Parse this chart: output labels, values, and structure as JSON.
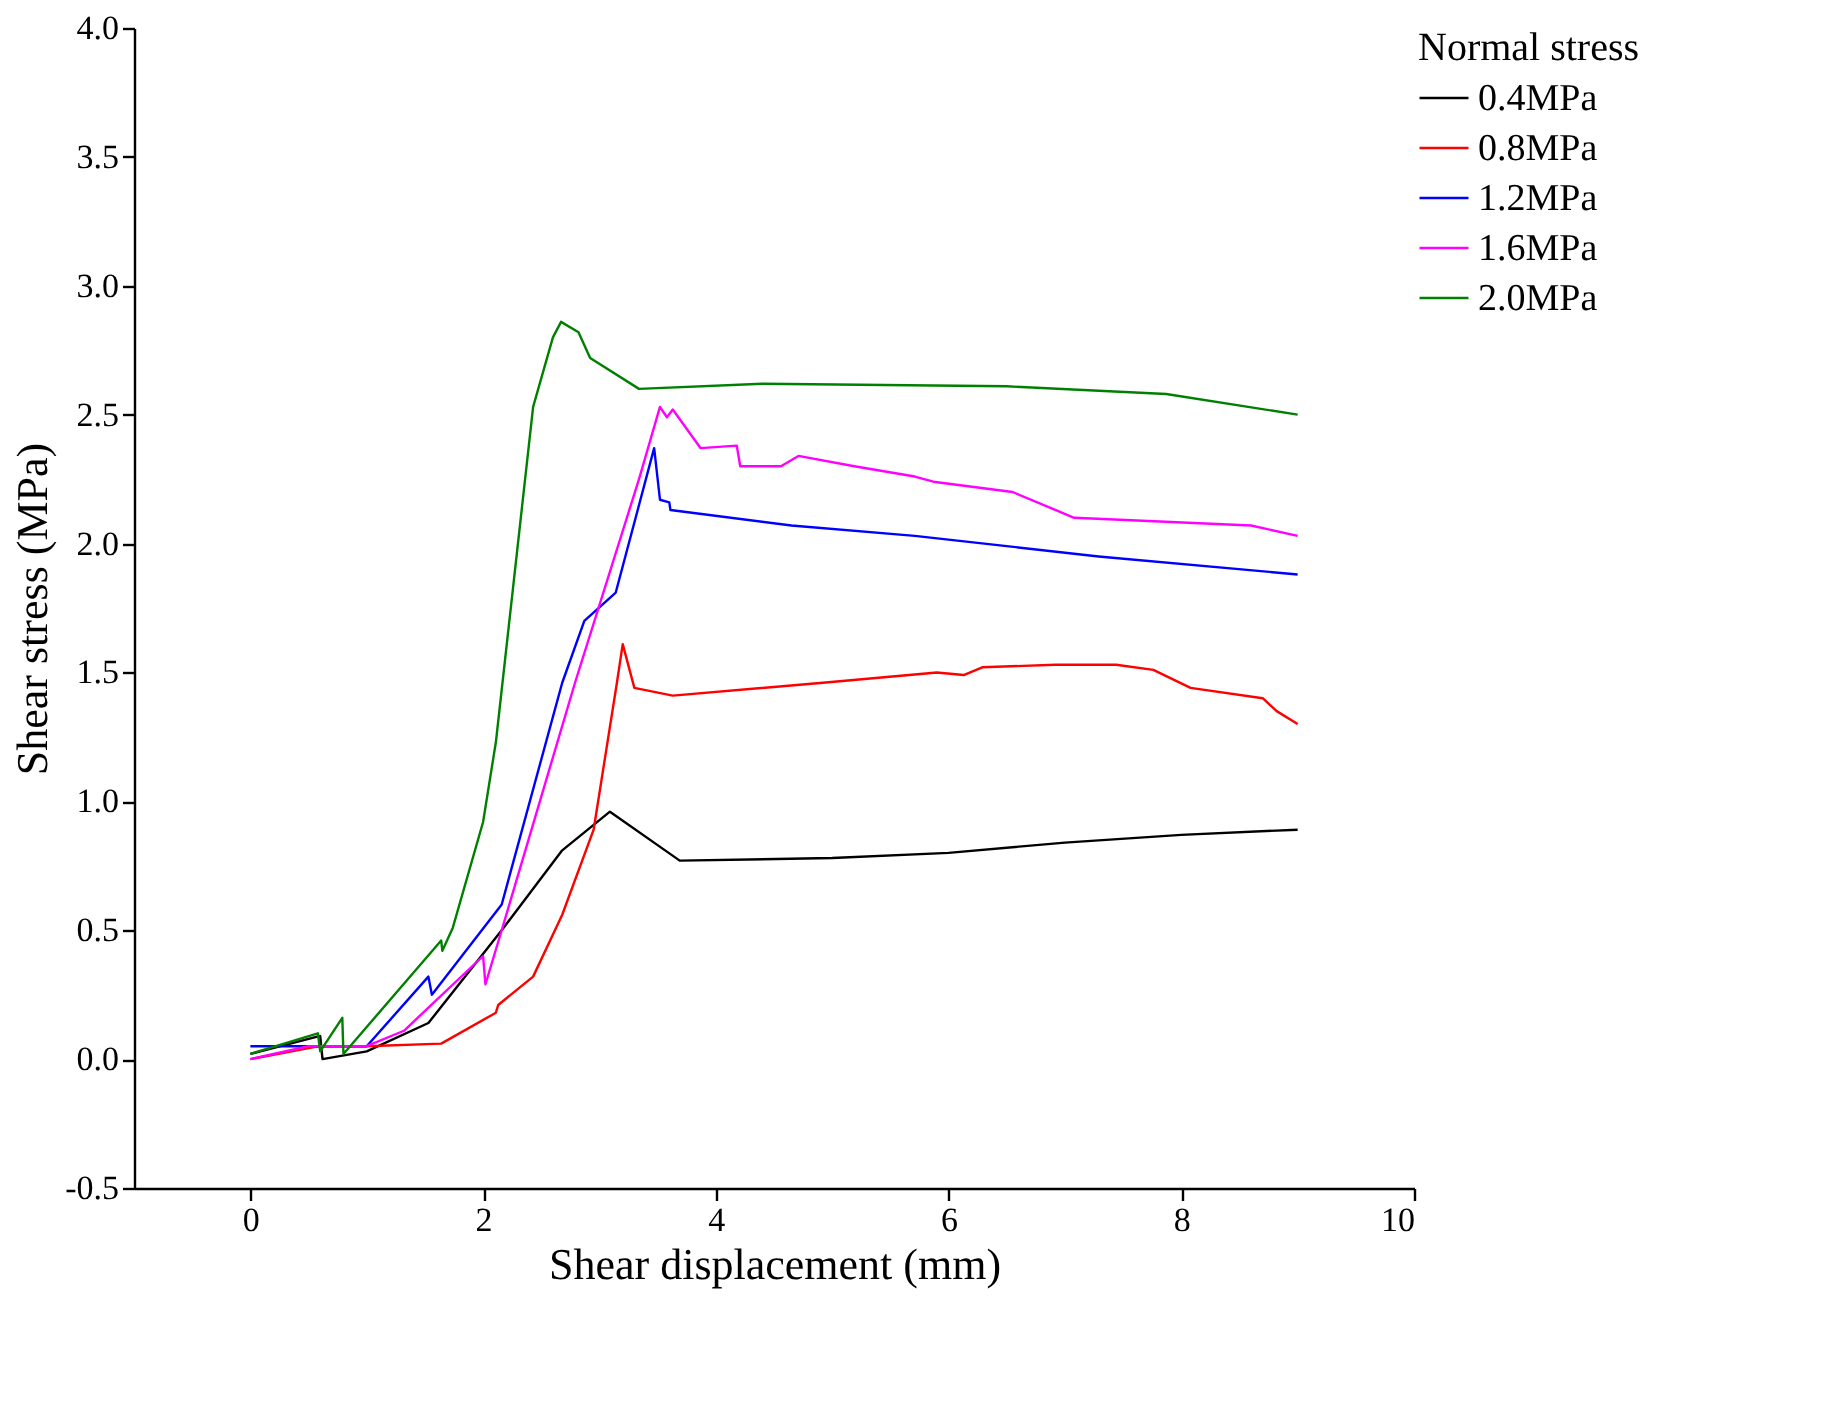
{
  "chart_data": {
    "type": "line",
    "xlabel": "Shear displacement (mm)",
    "ylabel": "Shear stress (MPa)",
    "legend_title": "Normal stress",
    "legend": "top right",
    "grid": false,
    "marker": "none",
    "line_style": "solid",
    "xlim": [
      -1,
      10
    ],
    "xticks": [
      0,
      2,
      4,
      6,
      8,
      10
    ],
    "ylim": [
      -0.5,
      4.0
    ],
    "yticks": [
      {
        "value": -0.5,
        "label": "-0.5"
      },
      {
        "value": 0,
        "label": "0.0"
      },
      {
        "value": 0.5,
        "label": "0.5"
      },
      {
        "value": 1,
        "label": "1.0"
      },
      {
        "value": 1.5,
        "label": "1.5"
      },
      {
        "value": 2,
        "label": "2.0"
      },
      {
        "value": 2.5,
        "label": "2.5"
      },
      {
        "value": 3,
        "label": "3.0"
      },
      {
        "value": 3.5,
        "label": "3.5"
      },
      {
        "value": 4,
        "label": "4.0"
      }
    ],
    "series": [
      {
        "name": "0.4MPa",
        "color": "#000000",
        "x": [
          0,
          0.6,
          0.62,
          1.0,
          1.53,
          2.16,
          2.68,
          3.09,
          3.69,
          5.0,
          6.0,
          7.0,
          8.0,
          9.0
        ],
        "values": [
          0.02,
          0.09,
          0.0,
          0.03,
          0.14,
          0.5,
          0.81,
          0.96,
          0.77,
          0.78,
          0.8,
          0.84,
          0.87,
          0.89
        ]
      },
      {
        "name": "0.8MPa",
        "color": "#ff0000",
        "x": [
          0,
          0.58,
          1.0,
          1.64,
          2.11,
          2.13,
          2.43,
          2.68,
          2.95,
          3.15,
          3.2,
          3.3,
          3.63,
          4.92,
          5.9,
          6.13,
          6.29,
          6.92,
          7.44,
          7.76,
          8.08,
          8.7,
          8.82,
          9.0
        ],
        "values": [
          0.0,
          0.05,
          0.05,
          0.06,
          0.18,
          0.21,
          0.32,
          0.56,
          0.89,
          1.46,
          1.61,
          1.44,
          1.41,
          1.46,
          1.5,
          1.49,
          1.52,
          1.53,
          1.53,
          1.51,
          1.44,
          1.4,
          1.35,
          1.3
        ]
      },
      {
        "name": "1.2MPa",
        "color": "#0000ff",
        "x": [
          0,
          0.5,
          1.0,
          1.53,
          1.56,
          2.16,
          2.68,
          2.87,
          3.14,
          3.47,
          3.52,
          3.6,
          3.61,
          4.65,
          5.71,
          6.5,
          7.29,
          9.0
        ],
        "values": [
          0.05,
          0.05,
          0.05,
          0.32,
          0.25,
          0.6,
          1.46,
          1.7,
          1.81,
          2.37,
          2.17,
          2.16,
          2.13,
          2.07,
          2.03,
          1.99,
          1.95,
          1.88
        ]
      },
      {
        "name": "1.6MPa",
        "color": "#ff00ff",
        "x": [
          0,
          0.5,
          1.0,
          1.32,
          2.0,
          2.02,
          2.16,
          2.79,
          3.34,
          3.52,
          3.58,
          3.63,
          3.87,
          4.18,
          4.21,
          4.56,
          4.71,
          5.19,
          5.71,
          5.87,
          6.55,
          7.08,
          8.6,
          9.0
        ],
        "values": [
          0.0,
          0.05,
          0.05,
          0.11,
          0.4,
          0.29,
          0.5,
          1.46,
          2.25,
          2.53,
          2.49,
          2.52,
          2.37,
          2.38,
          2.3,
          2.3,
          2.34,
          2.3,
          2.26,
          2.24,
          2.2,
          2.1,
          2.07,
          2.03
        ]
      },
      {
        "name": "2.0MPa",
        "color": "#008000",
        "x": [
          0,
          0.58,
          0.6,
          0.79,
          0.8,
          1.64,
          1.65,
          1.74,
          2.0,
          2.11,
          2.43,
          2.6,
          2.67,
          2.82,
          2.92,
          3.34,
          4.4,
          6.5,
          7.87,
          9.0
        ],
        "values": [
          0.02,
          0.1,
          0.03,
          0.16,
          0.02,
          0.46,
          0.42,
          0.51,
          0.92,
          1.23,
          2.53,
          2.8,
          2.86,
          2.82,
          2.72,
          2.6,
          2.62,
          2.61,
          2.58,
          2.5
        ]
      }
    ]
  }
}
